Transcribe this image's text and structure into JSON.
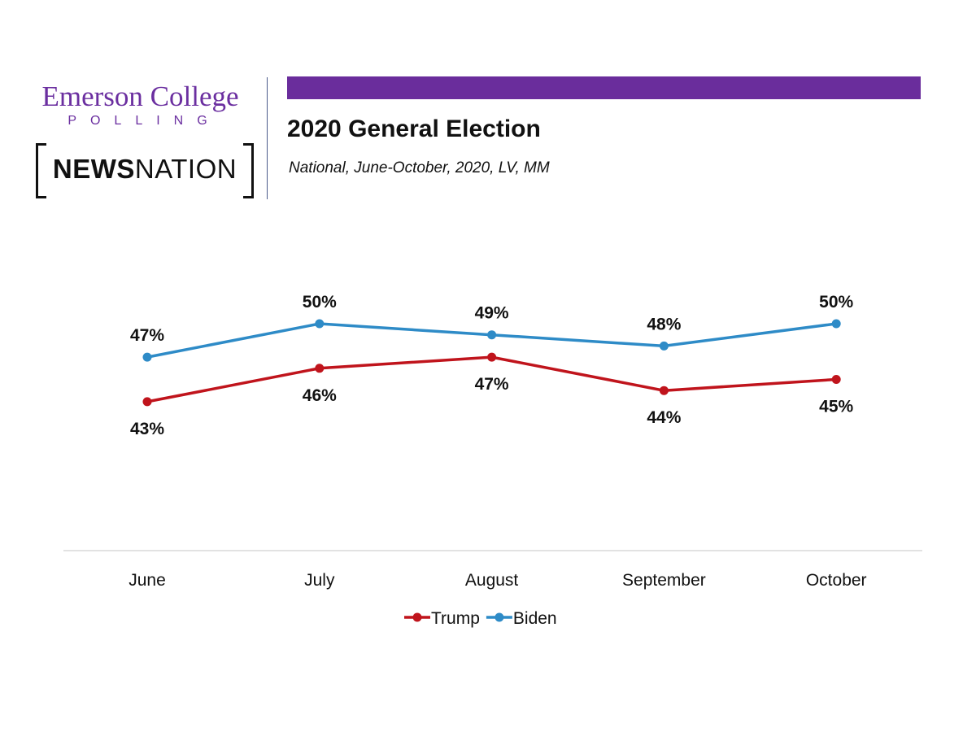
{
  "header": {
    "logo_emerson": "Emerson College",
    "logo_polling": "POLLING",
    "logo_news_bold": "NEWS",
    "logo_news_light": "NATION",
    "title": "2020 General Election",
    "subtitle": "National, June-October, 2020, LV, MM",
    "accent_color": "#6a2d9c"
  },
  "chart_data": {
    "type": "line",
    "title": "2020 General Election",
    "subtitle": "National, June-October, 2020, LV, MM",
    "categories": [
      "June",
      "July",
      "August",
      "September",
      "October"
    ],
    "series": [
      {
        "name": "Trump",
        "values": [
          43,
          46,
          47,
          44,
          45
        ],
        "labels": [
          "43%",
          "46%",
          "47%",
          "44%",
          "45%"
        ],
        "color": "#c0141c"
      },
      {
        "name": "Biden",
        "values": [
          47,
          50,
          49,
          48,
          50
        ],
        "labels": [
          "47%",
          "50%",
          "49%",
          "48%",
          "50%"
        ],
        "color": "#2e8bc7"
      }
    ],
    "value_unit": "%",
    "y_axis_visible": false,
    "grid": false,
    "legend": "bottom"
  }
}
